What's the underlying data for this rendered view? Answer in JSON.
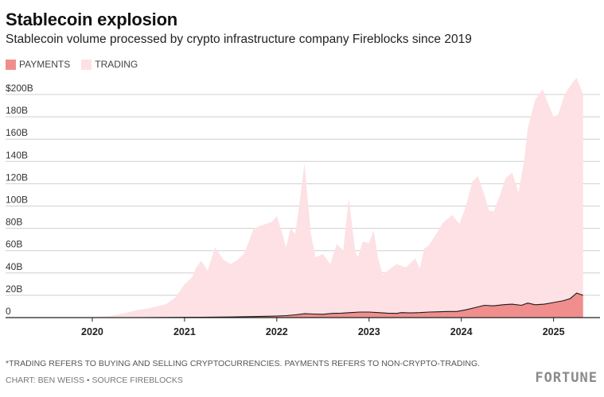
{
  "header": {
    "title": "Stablecoin explosion",
    "subtitle": "Stablecoin volume processed by crypto infrastructure company Fireblocks since 2019"
  },
  "footer": {
    "footnote": "*TRADING REFERS TO BUYING AND SELLING CRYPTOCURRENCIES. PAYMENTS REFERS TO NON-CRYPTO-TRADING.",
    "credit": "CHART: BEN WEISS • SOURCE FIREBLOCKS",
    "logo": "FORTUNE"
  },
  "colors": {
    "payments": "#f08e8e",
    "trading": "#fde1e4",
    "gridline": "#cfcfcf",
    "axis": "#222222"
  },
  "chart_data": {
    "type": "area",
    "stacked": false,
    "xlim": [
      2019.5,
      2025.4
    ],
    "ylim": [
      0,
      200
    ],
    "x_ticks": [
      {
        "value": 2020,
        "label": "2020"
      },
      {
        "value": 2021,
        "label": "2021"
      },
      {
        "value": 2022,
        "label": "2022"
      },
      {
        "value": 2023,
        "label": "2023"
      },
      {
        "value": 2024,
        "label": "2024"
      },
      {
        "value": 2025,
        "label": "2025"
      }
    ],
    "y_ticks": [
      {
        "value": 0,
        "label": "0"
      },
      {
        "value": 20,
        "label": "20B"
      },
      {
        "value": 40,
        "label": "40B"
      },
      {
        "value": 60,
        "label": "60B"
      },
      {
        "value": 80,
        "label": "80B"
      },
      {
        "value": 100,
        "label": "100B"
      },
      {
        "value": 120,
        "label": "120B"
      },
      {
        "value": 140,
        "label": "140B"
      },
      {
        "value": 160,
        "label": "160B"
      },
      {
        "value": 180,
        "label": "180B"
      },
      {
        "value": 200,
        "label": "$200B"
      }
    ],
    "grid": true,
    "legend_position": "top-left",
    "series": [
      {
        "name": "TRADING",
        "color": "#fde1e4",
        "x": [
          2019.5,
          2019.8,
          2020.0,
          2020.2,
          2020.35,
          2020.5,
          2020.6,
          2020.7,
          2020.8,
          2020.9,
          2021.0,
          2021.08,
          2021.12,
          2021.18,
          2021.25,
          2021.33,
          2021.42,
          2021.5,
          2021.58,
          2021.65,
          2021.75,
          2021.85,
          2021.95,
          2022.0,
          2022.05,
          2022.1,
          2022.15,
          2022.2,
          2022.25,
          2022.3,
          2022.33,
          2022.37,
          2022.42,
          2022.5,
          2022.58,
          2022.65,
          2022.72,
          2022.78,
          2022.85,
          2022.88,
          2022.93,
          2023.0,
          2023.05,
          2023.1,
          2023.15,
          2023.2,
          2023.25,
          2023.3,
          2023.4,
          2023.5,
          2023.55,
          2023.6,
          2023.65,
          2023.72,
          2023.8,
          2023.9,
          2023.98,
          2024.05,
          2024.12,
          2024.18,
          2024.25,
          2024.3,
          2024.35,
          2024.42,
          2024.48,
          2024.55,
          2024.62,
          2024.68,
          2024.72,
          2024.8,
          2024.88,
          2024.95,
          2025.0,
          2025.05,
          2025.12,
          2025.2,
          2025.25,
          2025.32
        ],
        "values": [
          0,
          0.2,
          0.5,
          1.5,
          4,
          7,
          8,
          10,
          12,
          18,
          30,
          36,
          44,
          51,
          42,
          63,
          52,
          48,
          52,
          58,
          80,
          83,
          86,
          91,
          78,
          63,
          80,
          75,
          105,
          138,
          110,
          75,
          54,
          57,
          48,
          66,
          60,
          107,
          59,
          54,
          68,
          67,
          78,
          52,
          38,
          42,
          45,
          48,
          45,
          53,
          44,
          62,
          65,
          74,
          85,
          92,
          84,
          100,
          122,
          127,
          110,
          96,
          95,
          110,
          125,
          130,
          112,
          140,
          170,
          195,
          205,
          190,
          180,
          182,
          200,
          210,
          215,
          200
        ]
      },
      {
        "name": "PAYMENTS",
        "color": "#f08e8e",
        "x": [
          2019.5,
          2020.0,
          2020.5,
          2021.0,
          2021.5,
          2021.8,
          2022.0,
          2022.1,
          2022.2,
          2022.3,
          2022.4,
          2022.5,
          2022.6,
          2022.7,
          2022.8,
          2022.9,
          2023.0,
          2023.1,
          2023.2,
          2023.3,
          2023.35,
          2023.45,
          2023.55,
          2023.65,
          2023.75,
          2023.85,
          2023.95,
          2024.05,
          2024.15,
          2024.25,
          2024.35,
          2024.45,
          2024.55,
          2024.65,
          2024.72,
          2024.8,
          2024.9,
          2025.0,
          2025.1,
          2025.18,
          2025.25,
          2025.32
        ],
        "values": [
          0,
          0,
          0,
          0.2,
          0.6,
          1,
          1.4,
          1.8,
          2.5,
          3.5,
          3.2,
          3,
          3.8,
          4,
          4.5,
          5,
          5,
          4.5,
          4,
          3.8,
          4.5,
          4.2,
          4.5,
          5,
          5.2,
          5.5,
          5.5,
          7,
          9,
          11,
          10.5,
          11.5,
          12,
          11,
          13,
          11.5,
          12,
          13.5,
          15,
          17,
          22,
          20
        ]
      }
    ]
  }
}
